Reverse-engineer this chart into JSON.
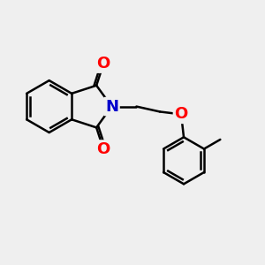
{
  "bg_color": "#efefef",
  "bond_color": "#000000",
  "N_color": "#0000cc",
  "O_color": "#ff0000",
  "bond_width": 1.8,
  "font_size_atom": 13,
  "fig_width": 3.0,
  "fig_height": 3.0,
  "dpi": 100,
  "xlim": [
    0,
    10
  ],
  "ylim": [
    0,
    10
  ]
}
